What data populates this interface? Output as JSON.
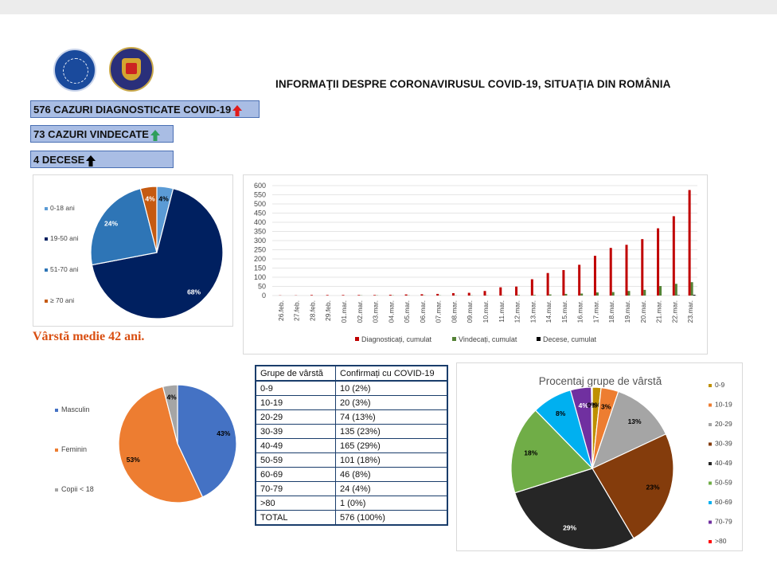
{
  "header": {
    "title": "INFORMAŢII DESPRE CORONAVIRUSUL COVID-19, SITUAŢIA DIN ROMÂNIA",
    "stats": [
      {
        "label": "576 CAZURI DIAGNOSTICATE COVID-19",
        "arrow_color": "#e01b1b"
      },
      {
        "label": "73 CAZURI VINDECATE",
        "arrow_color": "#2e9e5a"
      },
      {
        "label": "4 DECESE",
        "arrow_color": "#000000"
      }
    ],
    "median_age": "Vârstă medie 42 ani."
  },
  "chart_data": [
    {
      "type": "pie",
      "id": "age-pie",
      "labels": [
        "0-18 ani",
        "19-50 ani",
        "51-70 ani",
        "≥ 70 ani"
      ],
      "values": [
        4,
        68,
        24,
        4
      ],
      "value_labels": [
        "4%",
        "68%",
        "24%",
        "4%"
      ],
      "colors": [
        "#5b9bd5",
        "#002060",
        "#2e75b6",
        "#c55a11"
      ],
      "legend_position": "left"
    },
    {
      "type": "bar",
      "id": "timeline-bar",
      "categories": [
        "26.feb.",
        "27.feb.",
        "28.feb.",
        "29.feb.",
        "01.mar.",
        "02.mar.",
        "03.mar.",
        "04.mar.",
        "05.mar.",
        "06.mar.",
        "07.mar.",
        "08.mar.",
        "09.mar.",
        "10.mar.",
        "11.mar.",
        "12.mar.",
        "13.mar.",
        "14.mar.",
        "15.mar.",
        "16.mar.",
        "17.mar.",
        "18.mar.",
        "19.mar.",
        "20.mar.",
        "21.mar.",
        "22.mar.",
        "23.mar."
      ],
      "series": [
        {
          "name": "Diagnosticați, cumulat",
          "color": "#c00000",
          "values": [
            1,
            1,
            3,
            3,
            3,
            3,
            3,
            4,
            6,
            7,
            9,
            13,
            15,
            25,
            45,
            49,
            89,
            123,
            139,
            168,
            217,
            260,
            277,
            308,
            367,
            433,
            576
          ]
        },
        {
          "name": "Vindecați, cumulat",
          "color": "#548235",
          "values": [
            0,
            0,
            0,
            0,
            0,
            1,
            1,
            1,
            1,
            1,
            1,
            1,
            1,
            1,
            1,
            3,
            3,
            6,
            9,
            11,
            17,
            19,
            25,
            31,
            52,
            64,
            73
          ]
        },
        {
          "name": "Decese, cumulat",
          "color": "#000000",
          "values": [
            0,
            0,
            0,
            0,
            0,
            0,
            0,
            0,
            0,
            0,
            0,
            0,
            0,
            0,
            0,
            0,
            0,
            0,
            0,
            0,
            0,
            0,
            0,
            0,
            0,
            2,
            4
          ]
        }
      ],
      "yticks": [
        0,
        50,
        100,
        150,
        200,
        250,
        300,
        350,
        400,
        450,
        500,
        550,
        600
      ],
      "ylim": [
        0,
        600
      ],
      "grid": true,
      "legend_position": "bottom"
    },
    {
      "type": "pie",
      "id": "sex-pie",
      "labels": [
        "Masculin",
        "Feminin",
        "Copii < 18"
      ],
      "values": [
        43,
        53,
        4
      ],
      "value_labels": [
        "43%",
        "53%",
        "4%"
      ],
      "colors": [
        "#4472c4",
        "#ed7d31",
        "#a5a5a5"
      ],
      "legend_position": "left"
    },
    {
      "type": "table",
      "id": "age-groups-table",
      "headers": [
        "Grupe de vârstă",
        "Confirmați cu COVID-19"
      ],
      "rows": [
        [
          "0-9",
          "10 (2%)"
        ],
        [
          "10-19",
          "20 (3%)"
        ],
        [
          "20-29",
          "74 (13%)"
        ],
        [
          "30-39",
          "135 (23%)"
        ],
        [
          "40-49",
          "165 (29%)"
        ],
        [
          "50-59",
          "101 (18%)"
        ],
        [
          "60-69",
          "46 (8%)"
        ],
        [
          "70-79",
          "24 (4%)"
        ],
        [
          ">80",
          "1 (0%)"
        ],
        [
          "TOTAL",
          "576 (100%)"
        ]
      ]
    },
    {
      "type": "pie",
      "id": "group-pie",
      "title": "Procentaj grupe de vârstă",
      "labels": [
        "0-9",
        "10-19",
        "20-29",
        "30-39",
        "40-49",
        "50-59",
        "60-69",
        "70-79",
        ">80"
      ],
      "values": [
        10,
        20,
        74,
        135,
        165,
        101,
        46,
        24,
        1
      ],
      "value_labels": [
        "2%",
        "3%",
        "13%",
        "23%",
        "29%",
        "18%",
        "8%",
        "4%",
        "0%"
      ],
      "colors": [
        "#bf9000",
        "#ed7d31",
        "#a5a5a5",
        "#843c0c",
        "#262626",
        "#70ad47",
        "#00b0f0",
        "#7030a0",
        "#ff0000"
      ],
      "legend_position": "right"
    }
  ]
}
